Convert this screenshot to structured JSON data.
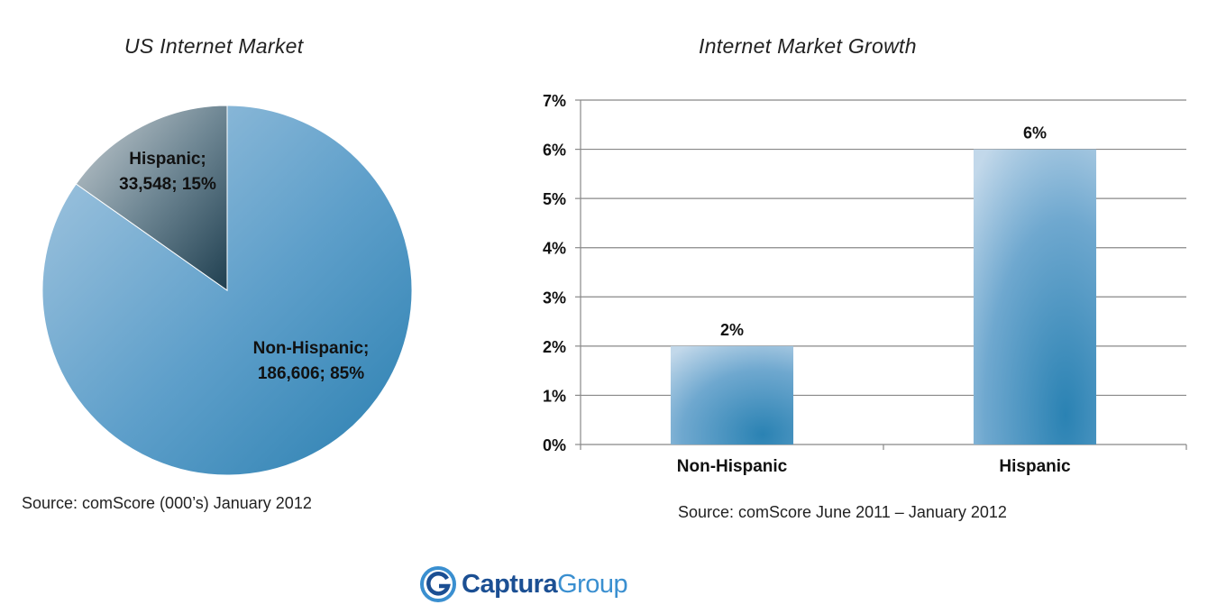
{
  "logo": {
    "brand": "Captura",
    "brand_suffix": "Group"
  },
  "colors": {
    "primary": "#4a94c4",
    "dark": "#22465a",
    "brand_dark": "#1b4f93",
    "brand_light": "#3a8fd0"
  },
  "chart_data": [
    {
      "type": "pie",
      "title": "US Internet Market",
      "source": "Source: comScore (000’s) January 2012",
      "slices": [
        {
          "name": "Non-Hispanic",
          "value": 186606,
          "percent": 85,
          "label_line1": "Non-Hispanic;",
          "label_line2": "186,606; 85%",
          "color": "#4a94c4"
        },
        {
          "name": "Hispanic",
          "value": 33548,
          "percent": 15,
          "label_line1": "Hispanic;",
          "label_line2": "33,548; 15%",
          "color": "#22465a"
        }
      ]
    },
    {
      "type": "bar",
      "title": "Internet Market Growth",
      "source": "Source: comScore June 2011 – January 2012",
      "categories": [
        "Non-Hispanic",
        "Hispanic"
      ],
      "values": [
        2,
        6
      ],
      "data_labels": [
        "2%",
        "6%"
      ],
      "ylim": [
        0,
        7
      ],
      "yticks": [
        "0%",
        "1%",
        "2%",
        "3%",
        "4%",
        "5%",
        "6%",
        "7%"
      ],
      "grid": true,
      "legend": "none"
    }
  ]
}
